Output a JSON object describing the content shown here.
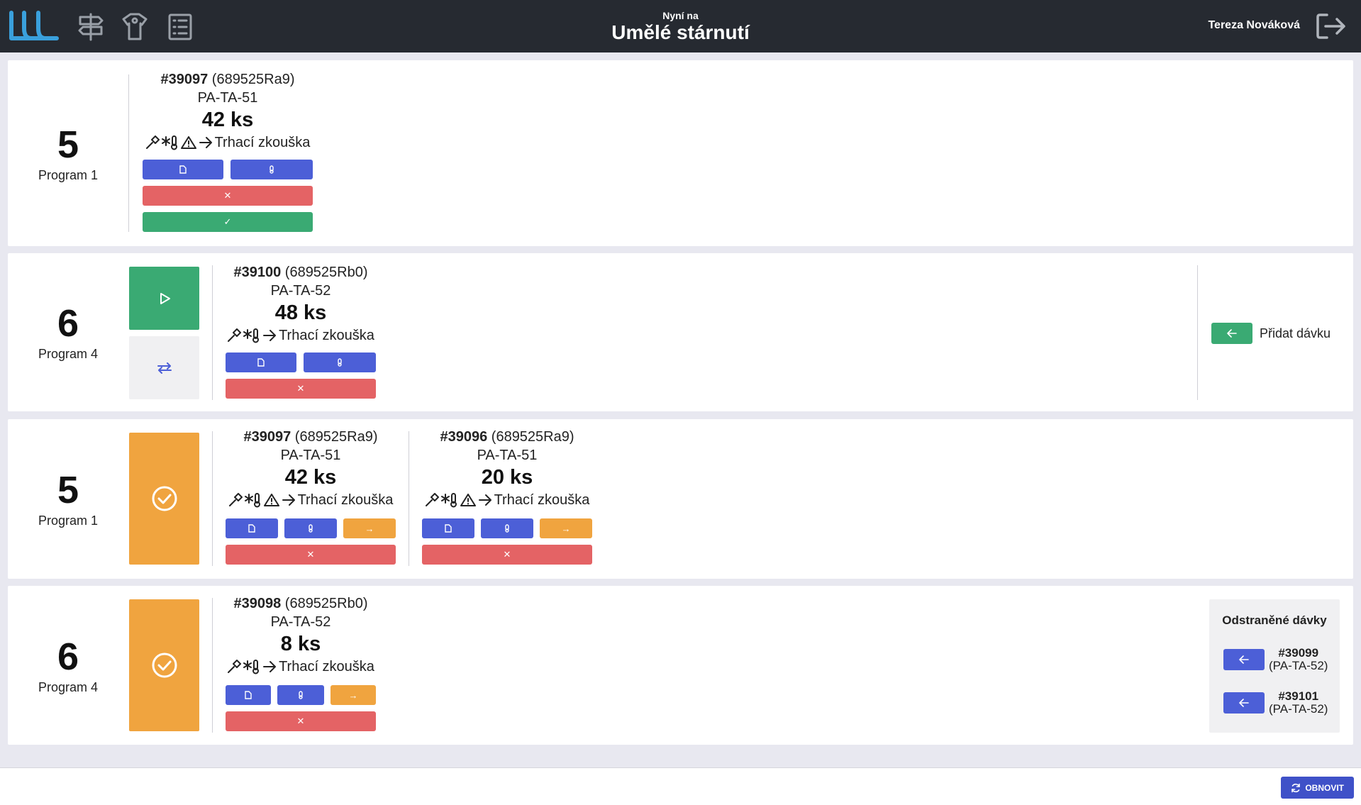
{
  "header": {
    "subtitle": "Nyní na",
    "title": "Umělé stárnutí",
    "user": "Tereza Nováková"
  },
  "cards": [
    {
      "number": "5",
      "program": "Program 1",
      "batches": [
        {
          "id": "#39097",
          "code": "(689525Ra9)",
          "part": "PA-TA-51",
          "qty": "42 ks",
          "route": "Trhací zkouška"
        }
      ]
    },
    {
      "number": "6",
      "program": "Program 4",
      "batches": [
        {
          "id": "#39100",
          "code": "(689525Rb0)",
          "part": "PA-TA-52",
          "qty": "48 ks",
          "route": "Trhací zkouška"
        }
      ],
      "add_batch_label": "Přidat dávku"
    },
    {
      "number": "5",
      "program": "Program 1",
      "batches": [
        {
          "id": "#39097",
          "code": "(689525Ra9)",
          "part": "PA-TA-51",
          "qty": "42 ks",
          "route": "Trhací zkouška"
        },
        {
          "id": "#39096",
          "code": "(689525Ra9)",
          "part": "PA-TA-51",
          "qty": "20 ks",
          "route": "Trhací zkouška"
        }
      ]
    },
    {
      "number": "6",
      "program": "Program 4",
      "batches": [
        {
          "id": "#39098",
          "code": "(689525Rb0)",
          "part": "PA-TA-52",
          "qty": "8 ks",
          "route": "Trhací zkouška"
        }
      ],
      "removed": {
        "title": "Odstraněné dávky",
        "items": [
          {
            "id": "#39099",
            "part": "(PA-TA-52)"
          },
          {
            "id": "#39101",
            "part": "(PA-TA-52)"
          }
        ]
      }
    }
  ],
  "footer": {
    "refresh_label": "OBNOVIT"
  },
  "colors": {
    "topbar": "#262a31",
    "blue": "#4c5fd7",
    "red": "#e46365",
    "green": "#3aaa73",
    "orange": "#f0a43f",
    "logo": "#3aa0dc"
  }
}
